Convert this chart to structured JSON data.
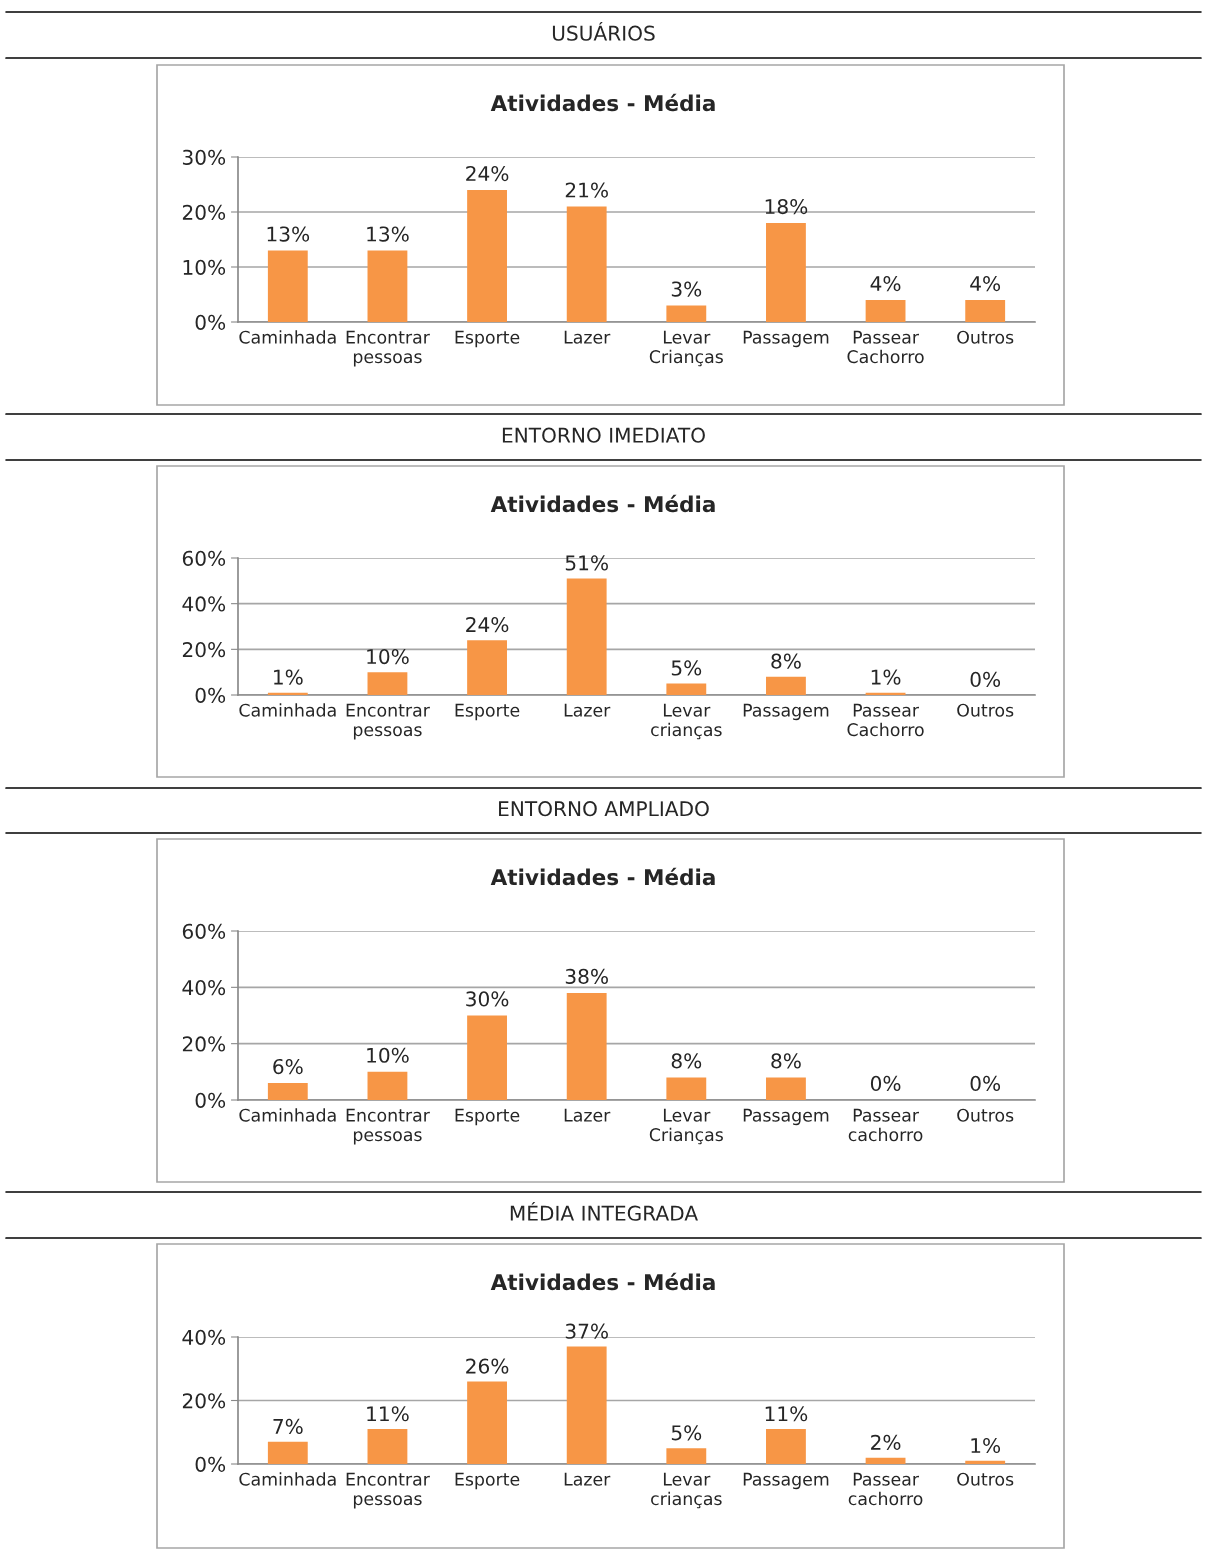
{
  "chart_data": [
    {
      "type": "bar",
      "subtitle": "USUÁRIOS",
      "title": "Atividades - Média",
      "categories": [
        "Caminhada",
        "Encontrar\npessoas",
        "Esporte",
        "Lazer",
        "Levar\nCrianças",
        "Passagem",
        "Passear\nCachorro",
        "Outros"
      ],
      "values": [
        13,
        13,
        24,
        21,
        3,
        18,
        4,
        4
      ],
      "value_labels": [
        "13%",
        "13%",
        "24%",
        "21%",
        "3%",
        "18%",
        "4%",
        "4%"
      ],
      "color": "#f79646",
      "ylim": [
        0,
        30
      ],
      "yticks": [
        {
          "value": 0,
          "label": "0%"
        },
        {
          "value": 10,
          "label": "10%"
        },
        {
          "value": 20,
          "label": "20%"
        },
        {
          "value": 30,
          "label": "30%"
        }
      ],
      "grid": "y"
    },
    {
      "type": "bar",
      "subtitle": "ENTORNO IMEDIATO",
      "title": "Atividades - Média",
      "categories": [
        "Caminhada",
        "Encontrar\npessoas",
        "Esporte",
        "Lazer",
        "Levar\ncrianças",
        "Passagem",
        "Passear\nCachorro",
        "Outros"
      ],
      "values": [
        1,
        10,
        24,
        51,
        5,
        8,
        1,
        0
      ],
      "value_labels": [
        "1%",
        "10%",
        "24%",
        "51%",
        "5%",
        "8%",
        "1%",
        "0%"
      ],
      "color": "#f79646",
      "ylim": [
        0,
        60
      ],
      "yticks": [
        {
          "value": 0,
          "label": "0%"
        },
        {
          "value": 20,
          "label": "20%"
        },
        {
          "value": 40,
          "label": "40%"
        },
        {
          "value": 60,
          "label": "60%"
        }
      ],
      "grid": "y"
    },
    {
      "type": "bar",
      "subtitle": "ENTORNO AMPLIADO",
      "title": "Atividades - Média",
      "categories": [
        "Caminhada",
        "Encontrar\npessoas",
        "Esporte",
        "Lazer",
        "Levar\nCrianças",
        "Passagem",
        "Passear\ncachorro",
        "Outros"
      ],
      "values": [
        6,
        10,
        30,
        38,
        8,
        8,
        0,
        0
      ],
      "value_labels": [
        "6%",
        "10%",
        "30%",
        "38%",
        "8%",
        "8%",
        "0%",
        "0%"
      ],
      "color": "#f79646",
      "ylim": [
        0,
        60
      ],
      "yticks": [
        {
          "value": 0,
          "label": "0%"
        },
        {
          "value": 20,
          "label": "20%"
        },
        {
          "value": 40,
          "label": "40%"
        },
        {
          "value": 60,
          "label": "60%"
        }
      ],
      "grid": "y"
    },
    {
      "type": "bar",
      "subtitle": "MÉDIA INTEGRADA",
      "title": "Atividades - Média",
      "categories": [
        "Caminhada",
        "Encontrar\npessoas",
        "Esporte",
        "Lazer",
        "Levar\ncrianças",
        "Passagem",
        "Passear\ncachorro",
        "Outros"
      ],
      "values": [
        7,
        11,
        26,
        37,
        5,
        11,
        2,
        1
      ],
      "value_labels": [
        "7%",
        "11%",
        "26%",
        "37%",
        "5%",
        "11%",
        "2%",
        "1%"
      ],
      "color": "#f79646",
      "ylim": [
        0,
        40
      ],
      "yticks": [
        {
          "value": 0,
          "label": "0%"
        },
        {
          "value": 20,
          "label": "20%"
        },
        {
          "value": 40,
          "label": "40%"
        }
      ],
      "grid": "y"
    }
  ]
}
